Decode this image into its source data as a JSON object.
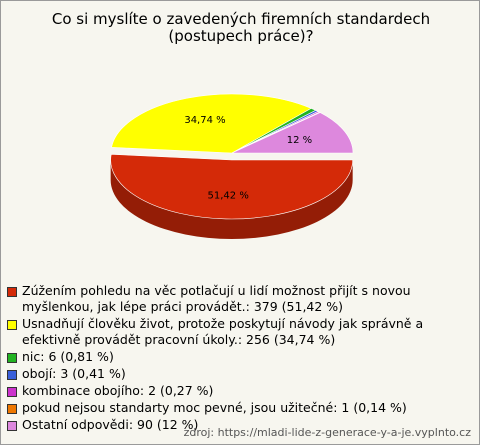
{
  "chart_data": {
    "type": "pie3d",
    "title": "Co si myslíte o zavedených firemních standardech (postupech práce)?",
    "categories": [
      "Zúžením pohledu na věc potlačují u lidí možnost přijít s novou myšlenkou, jak lépe práci provádět.: 379 (51,42 %)",
      "Usnadňují člověku život, protože poskytují návody jak správně a efektivně provádět pracovní úkoly.: 256 (34,74 %)",
      "nic: 6 (0,81 %)",
      "obojí: 3 (0,41 %)",
      "kombinace obojího: 2 (0,27 %)",
      "pokud nejsou standarty moc pevné, jsou užitečné: 1 (0,14 %)",
      "Ostatní odpovědi: 90 (12 %)"
    ],
    "values": [
      51.42,
      34.74,
      0.81,
      0.41,
      0.27,
      0.14,
      12
    ],
    "value_labels": [
      "51,42 %",
      "34,74 %",
      null,
      null,
      null,
      null,
      "12 %"
    ],
    "colors": [
      "#d42a08",
      "#ffff00",
      "#22b322",
      "#3a5fd9",
      "#cc33cc",
      "#ee7700",
      "#dd88dd"
    ],
    "source": "zdroj: https://mladi-lide-z-generace-y-a-je.vyplnto.cz"
  }
}
